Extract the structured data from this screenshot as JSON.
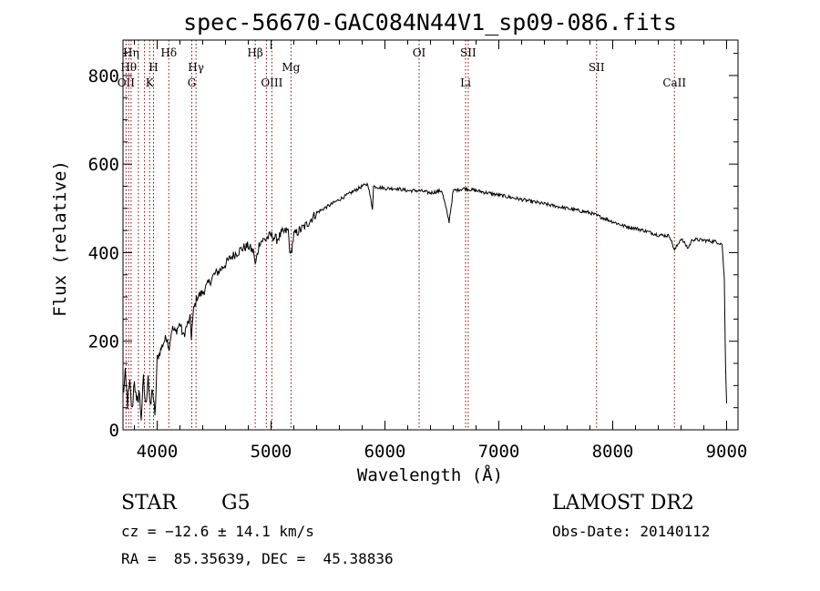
{
  "chart_data": {
    "type": "line",
    "title": "spec-56670-GAC084N44V1_sp09-086.fits",
    "xlabel": "Wavelength (Å)",
    "ylabel": "Flux (relative)",
    "xlim": [
      3700,
      9100
    ],
    "ylim": [
      0,
      880
    ],
    "xticks": [
      4000,
      5000,
      6000,
      7000,
      8000,
      9000
    ],
    "yticks": [
      0,
      200,
      400,
      600,
      800
    ],
    "grid": false,
    "series": [
      {
        "color": "#000000",
        "points": [
          [
            3700,
            80
          ],
          [
            3720,
            120
          ],
          [
            3740,
            60
          ],
          [
            3760,
            100
          ],
          [
            3780,
            40
          ],
          [
            3800,
            120
          ],
          [
            3820,
            50
          ],
          [
            3840,
            90
          ],
          [
            3860,
            30
          ],
          [
            3880,
            110
          ],
          [
            3900,
            50
          ],
          [
            3920,
            130
          ],
          [
            3940,
            40
          ],
          [
            3960,
            100
          ],
          [
            3980,
            20
          ],
          [
            4000,
            160
          ],
          [
            4030,
            180
          ],
          [
            4060,
            200
          ],
          [
            4090,
            210
          ],
          [
            4100,
            180
          ],
          [
            4130,
            230
          ],
          [
            4160,
            220
          ],
          [
            4200,
            240
          ],
          [
            4230,
            210
          ],
          [
            4260,
            235
          ],
          [
            4290,
            250
          ],
          [
            4300,
            210
          ],
          [
            4320,
            270
          ],
          [
            4350,
            300
          ],
          [
            4400,
            310
          ],
          [
            4450,
            330
          ],
          [
            4500,
            350
          ],
          [
            4550,
            360
          ],
          [
            4600,
            375
          ],
          [
            4650,
            390
          ],
          [
            4700,
            400
          ],
          [
            4750,
            410
          ],
          [
            4800,
            415
          ],
          [
            4850,
            400
          ],
          [
            4861,
            370
          ],
          [
            4900,
            425
          ],
          [
            4950,
            430
          ],
          [
            5000,
            440
          ],
          [
            5050,
            430
          ],
          [
            5100,
            445
          ],
          [
            5150,
            450
          ],
          [
            5170,
            390
          ],
          [
            5200,
            440
          ],
          [
            5300,
            460
          ],
          [
            5400,
            490
          ],
          [
            5500,
            505
          ],
          [
            5600,
            520
          ],
          [
            5700,
            535
          ],
          [
            5800,
            550
          ],
          [
            5850,
            555
          ],
          [
            5890,
            500
          ],
          [
            5900,
            550
          ],
          [
            6000,
            545
          ],
          [
            6100,
            545
          ],
          [
            6200,
            540
          ],
          [
            6300,
            540
          ],
          [
            6400,
            535
          ],
          [
            6500,
            540
          ],
          [
            6563,
            470
          ],
          [
            6600,
            540
          ],
          [
            6700,
            545
          ],
          [
            6800,
            540
          ],
          [
            6900,
            535
          ],
          [
            7000,
            530
          ],
          [
            7100,
            525
          ],
          [
            7200,
            520
          ],
          [
            7300,
            515
          ],
          [
            7400,
            510
          ],
          [
            7500,
            505
          ],
          [
            7600,
            500
          ],
          [
            7700,
            495
          ],
          [
            7800,
            490
          ],
          [
            7900,
            480
          ],
          [
            8000,
            470
          ],
          [
            8100,
            460
          ],
          [
            8200,
            455
          ],
          [
            8300,
            448
          ],
          [
            8400,
            440
          ],
          [
            8500,
            438
          ],
          [
            8542,
            405
          ],
          [
            8600,
            432
          ],
          [
            8662,
            410
          ],
          [
            8700,
            430
          ],
          [
            8800,
            428
          ],
          [
            8900,
            425
          ],
          [
            8960,
            420
          ],
          [
            8980,
            340
          ],
          [
            8990,
            150
          ],
          [
            9000,
            60
          ]
        ]
      }
    ],
    "line_markers": [
      {
        "wavelength": 3727,
        "label": "OII",
        "row": 3
      },
      {
        "wavelength": 3750,
        "label": "Hθ",
        "row": 2
      },
      {
        "wavelength": 3771,
        "label": "Hη",
        "row": 1
      },
      {
        "wavelength": 3835,
        "label": "",
        "row": 0
      },
      {
        "wavelength": 3889,
        "label": "",
        "row": 0
      },
      {
        "wavelength": 3934,
        "label": "K",
        "row": 3
      },
      {
        "wavelength": 3968,
        "label": "H",
        "row": 2
      },
      {
        "wavelength": 4102,
        "label": "Hδ",
        "row": 1
      },
      {
        "wavelength": 4304,
        "label": "G",
        "row": 3
      },
      {
        "wavelength": 4341,
        "label": "Hγ",
        "row": 2
      },
      {
        "wavelength": 4861,
        "label": "Hβ",
        "row": 1
      },
      {
        "wavelength": 4959,
        "label": "",
        "row": 0
      },
      {
        "wavelength": 5007,
        "label": "OIII",
        "row": 3
      },
      {
        "wavelength": 5175,
        "label": "Mg",
        "row": 2
      },
      {
        "wavelength": 6300,
        "label": "OI",
        "row": 1
      },
      {
        "wavelength": 6708,
        "label": "Li",
        "row": 3
      },
      {
        "wavelength": 6731,
        "label": "SII",
        "row": 1
      },
      {
        "wavelength": 7858,
        "label": "SII",
        "row": 2
      },
      {
        "wavelength": 8542,
        "label": "CaII",
        "row": 3
      }
    ],
    "marker_color": "#8b0000"
  },
  "footer": {
    "object_type": "STAR",
    "subclass": "G5",
    "survey": "LAMOST DR2",
    "redshift": "cz = −12.6 ± 14.1 km/s",
    "obs_date": "Obs-Date: 20140112",
    "coords": "RA =  85.35639, DEC =  45.38836"
  }
}
